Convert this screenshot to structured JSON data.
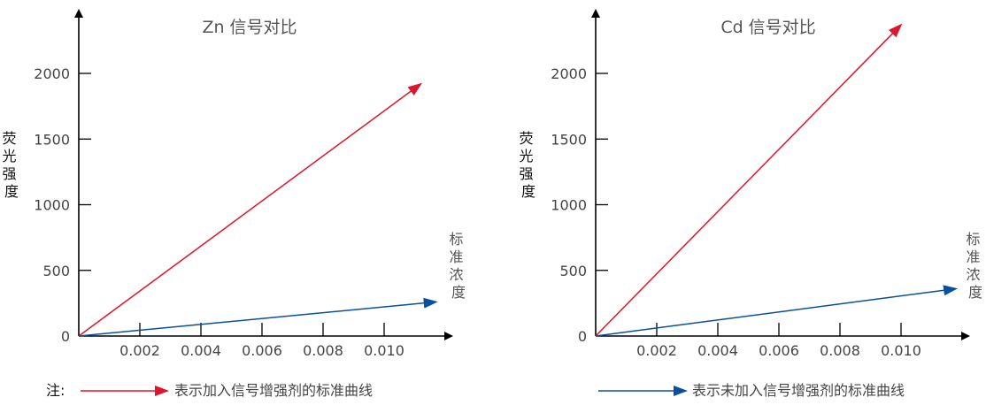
{
  "chart_data": [
    {
      "type": "line",
      "title": "Zn 信号对比",
      "ylabel": "荧光强度",
      "xlabel": "标准浓度",
      "ylim": [
        0,
        2000
      ],
      "xlim": [
        0,
        0.012
      ],
      "yticks": [
        0,
        500,
        1000,
        1500,
        2000
      ],
      "xticks": [
        0.002,
        0.004,
        0.006,
        0.008,
        0.01
      ],
      "xtick_labels": [
        "0.002",
        "0.004",
        "0.006",
        "0.008",
        "0.010"
      ],
      "series": [
        {
          "color": "#e0142b",
          "x": [
            0,
            0.0112
          ],
          "y": [
            0,
            1920
          ]
        },
        {
          "color": "#0a4f9e",
          "x": [
            0,
            0.0117
          ],
          "y": [
            0,
            260
          ]
        }
      ]
    },
    {
      "type": "line",
      "title": "Cd 信号对比",
      "ylabel": "荧光强度",
      "xlabel": "标准浓度",
      "ylim": [
        0,
        2000
      ],
      "xlim": [
        0,
        0.012
      ],
      "yticks": [
        0,
        500,
        1000,
        1500,
        2000
      ],
      "xticks": [
        0.002,
        0.004,
        0.006,
        0.008,
        0.01
      ],
      "xtick_labels": [
        "0.002",
        "0.004",
        "0.006",
        "0.008",
        "0.010"
      ],
      "series": [
        {
          "color": "#e0142b",
          "x": [
            0,
            0.01
          ],
          "y": [
            0,
            2370
          ]
        },
        {
          "color": "#0a4f9e",
          "x": [
            0,
            0.0118
          ],
          "y": [
            0,
            360
          ]
        }
      ]
    }
  ],
  "legend": {
    "prefix": "注:",
    "items": [
      {
        "label": "表示加入信号增强剂的标准曲线",
        "color": "#e0142b"
      },
      {
        "label": "表示未加入信号增强剂的标准曲线",
        "color": "#0a4f9e"
      }
    ]
  }
}
